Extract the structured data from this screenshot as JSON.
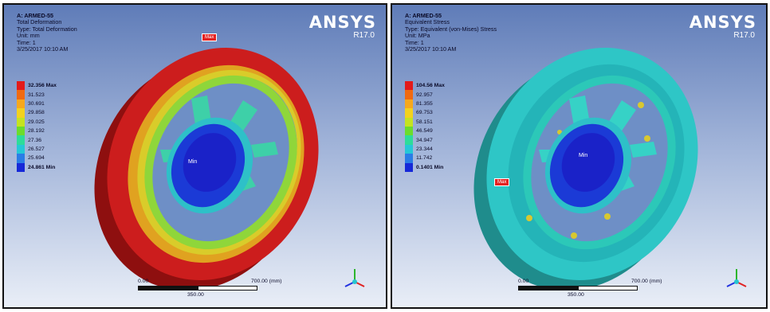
{
  "left": {
    "header": [
      "A: ARMED-55",
      "Total Deformation",
      "Type: Total Deformation",
      "Unit: mm",
      "Time: 1",
      "3/25/2017 10:10 AM"
    ],
    "logo": {
      "name": "ANSYS",
      "version": "R17.0"
    },
    "legend": [
      {
        "label": "32.356 Max",
        "color": "#e31a1a"
      },
      {
        "label": "31.523",
        "color": "#f06a10"
      },
      {
        "label": "30.691",
        "color": "#f6a81c"
      },
      {
        "label": "29.858",
        "color": "#f2d21e"
      },
      {
        "label": "29.025",
        "color": "#c5e320"
      },
      {
        "label": "28.192",
        "color": "#6cdc2c"
      },
      {
        "label": "27.36",
        "color": "#2ddc9a"
      },
      {
        "label": "26.527",
        "color": "#25c8d6"
      },
      {
        "label": "25.694",
        "color": "#2a7de6"
      },
      {
        "label": "24.861 Min",
        "color": "#1628d8"
      }
    ],
    "max_tag": "Max",
    "min_tag": "Min",
    "scale": {
      "start": "0.00",
      "mid": "350.00",
      "end": "700.00 (mm)"
    }
  },
  "right": {
    "header": [
      "A: ARMED-55",
      "Equivalent Stress",
      "Type: Equivalent (von-Mises) Stress",
      "Unit: MPa",
      "Time: 1",
      "3/25/2017 10:10 AM"
    ],
    "logo": {
      "name": "ANSYS",
      "version": "R17.0"
    },
    "legend": [
      {
        "label": "104.56 Max",
        "color": "#e31a1a"
      },
      {
        "label": "92.957",
        "color": "#f06a10"
      },
      {
        "label": "81.355",
        "color": "#f6a81c"
      },
      {
        "label": "69.753",
        "color": "#f2d21e"
      },
      {
        "label": "58.151",
        "color": "#c5e320"
      },
      {
        "label": "46.549",
        "color": "#6cdc2c"
      },
      {
        "label": "34.947",
        "color": "#2ddc9a"
      },
      {
        "label": "23.344",
        "color": "#25c8d6"
      },
      {
        "label": "11.742",
        "color": "#2a7de6"
      },
      {
        "label": "0.1401 Min",
        "color": "#1628d8"
      }
    ],
    "max_tag": "Max",
    "min_tag": "Min",
    "scale": {
      "start": "0.00",
      "mid": "350.00",
      "end": "700.00 (mm)"
    }
  }
}
